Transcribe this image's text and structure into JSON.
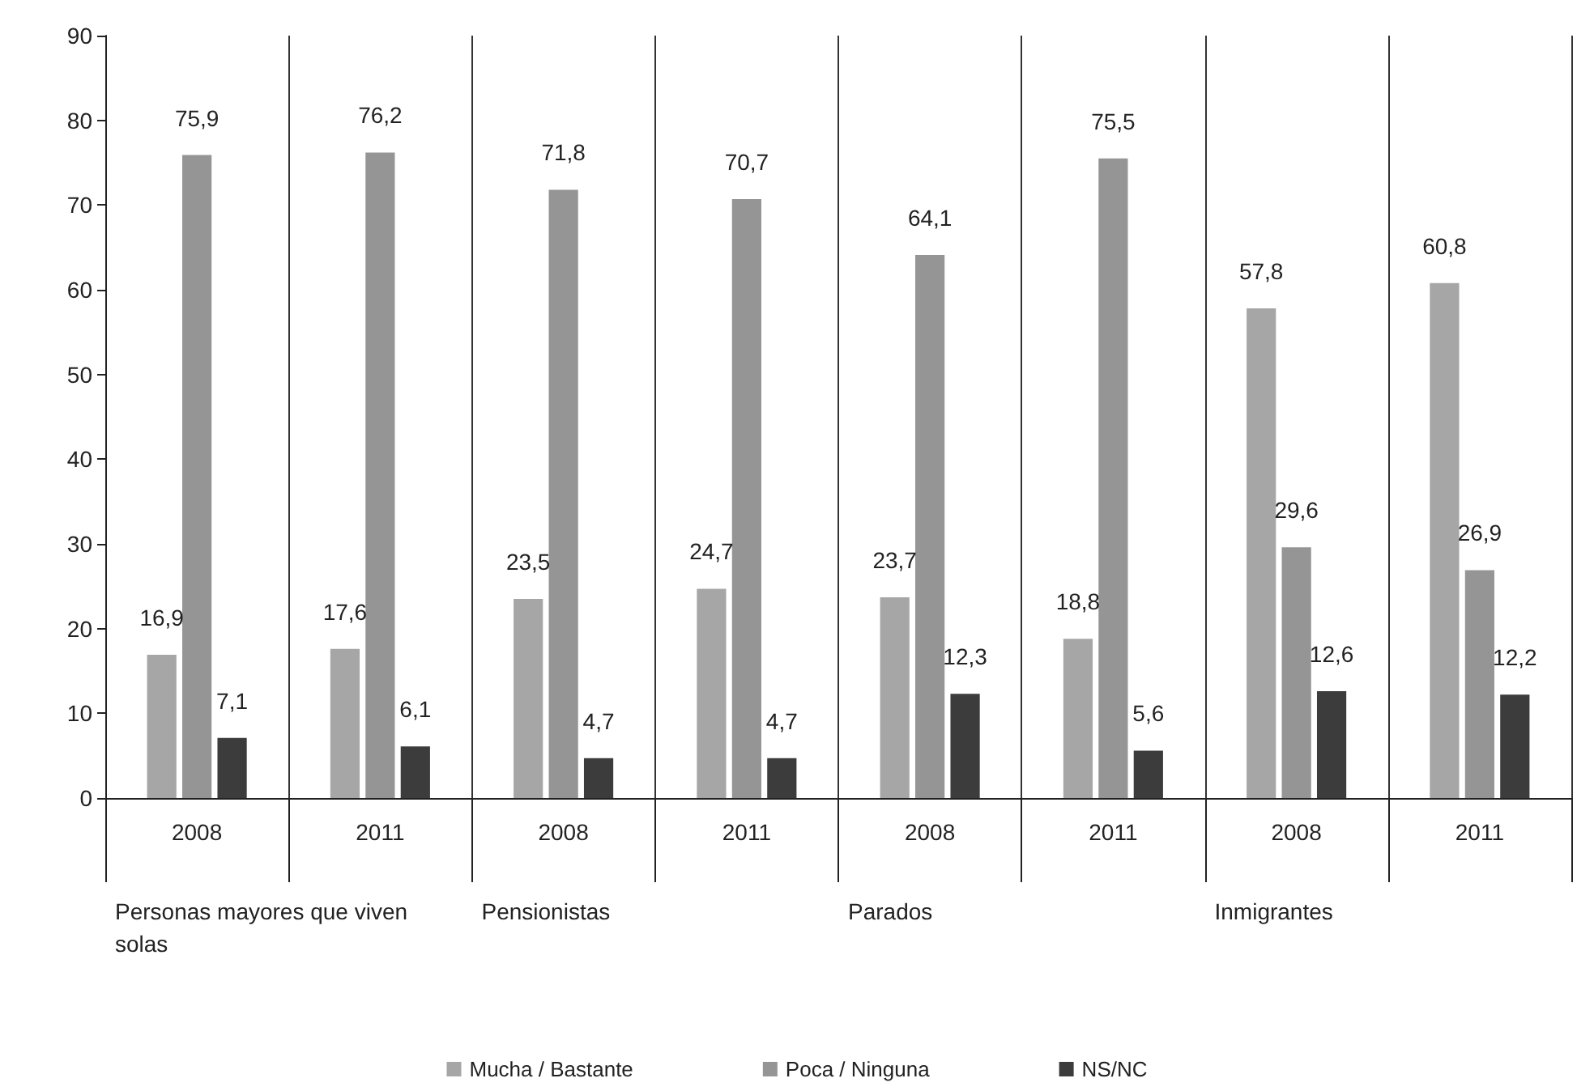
{
  "chart_data": {
    "type": "bar",
    "categories": [
      "2008",
      "2011",
      "2008",
      "2011",
      "2008",
      "2011",
      "2008",
      "2011"
    ],
    "series": [
      {
        "name": "Mucha / Bastante",
        "color": "#a6a6a6",
        "values": [
          16.9,
          17.6,
          23.5,
          24.7,
          23.7,
          18.8,
          57.8,
          60.8
        ],
        "value_labels": [
          "16,9",
          "17,6",
          "23,5",
          "24,7",
          "23,7",
          "18,8",
          "57,8",
          "60,8"
        ]
      },
      {
        "name": "Poca / Ninguna",
        "color": "#959595",
        "values": [
          75.9,
          76.2,
          71.8,
          70.7,
          64.1,
          75.5,
          29.6,
          26.9
        ],
        "value_labels": [
          "75,9",
          "76,2",
          "71,8",
          "70,7",
          "64,1",
          "75,5",
          "29,6",
          "26,9"
        ]
      },
      {
        "name": "NS/NC",
        "color": "#3c3c3c",
        "values": [
          7.1,
          6.1,
          4.7,
          4.7,
          12.3,
          5.6,
          12.6,
          12.2
        ],
        "value_labels": [
          "7,1",
          "6,1",
          "4,7",
          "4,7",
          "12,3",
          "5,6",
          "12,6",
          "12,2"
        ]
      }
    ],
    "annotations": [
      "Personas mayores que viven solas",
      "Pensionistas",
      "Parados",
      "Inmigrantes"
    ],
    "ylim": [
      0,
      90
    ],
    "yticks": [
      0,
      10,
      20,
      30,
      40,
      50,
      60,
      70,
      80,
      90
    ],
    "grid": "x",
    "legend": "bottom"
  }
}
